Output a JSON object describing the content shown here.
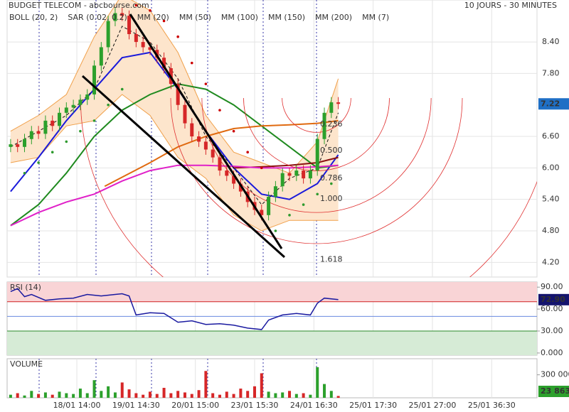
{
  "chart_data": {
    "type": "candlestick",
    "title": "BUDGET TELECOM - abcbourse.com",
    "subtitle": "10 JOURS - 30 MINUTES",
    "xlim": [
      0,
      152
    ],
    "xticks": [
      {
        "value": 20,
        "label": "18/01 14:00"
      },
      {
        "value": 37,
        "label": "19/01 14:30"
      },
      {
        "value": 54,
        "label": "20/01 15:00"
      },
      {
        "value": 71,
        "label": "23/01 15:30"
      },
      {
        "value": 88,
        "label": "24/01 16:30"
      },
      {
        "value": 105,
        "label": "25/01 17:30"
      },
      {
        "value": 122,
        "label": "25/01 27:00"
      },
      {
        "value": 139,
        "label": "25/01 36:30"
      }
    ],
    "ylim": [
      3.92,
      9.2
    ],
    "yticks": [
      {
        "value": 8.4,
        "label": "8.40"
      },
      {
        "value": 7.8,
        "label": "7.80"
      },
      {
        "value": 6.6,
        "label": "6.60"
      },
      {
        "value": 6,
        "label": "6.00"
      },
      {
        "value": 5.4,
        "label": "5.40"
      },
      {
        "value": 4.8,
        "label": "4.80"
      },
      {
        "value": 4.2,
        "label": "4.20"
      }
    ],
    "grid": true,
    "up_color": "#2ca02c",
    "down_color": "#d62728",
    "x": [
      1,
      3,
      5,
      7,
      9,
      11,
      13,
      15,
      17,
      19,
      21,
      23,
      25,
      27,
      29,
      31,
      33,
      35,
      37,
      39,
      41,
      43,
      45,
      47,
      49,
      51,
      53,
      55,
      57,
      59,
      61,
      63,
      65,
      67,
      69,
      71,
      73,
      75,
      77,
      79,
      81,
      83,
      85,
      87,
      89,
      91,
      93,
      95
    ],
    "open": [
      6.4,
      6.45,
      6.4,
      6.55,
      6.7,
      6.65,
      6.9,
      6.8,
      7.05,
      7.15,
      7.2,
      7.3,
      7.4,
      7.95,
      8.3,
      8.8,
      8.95,
      8.9,
      8.55,
      8.4,
      8.3,
      8.25,
      8.1,
      7.9,
      7.6,
      7.2,
      6.85,
      6.6,
      6.5,
      6.35,
      6.2,
      5.95,
      5.85,
      5.7,
      5.55,
      5.35,
      5.2,
      5.1,
      5.45,
      5.65,
      5.9,
      5.85,
      5.95,
      5.8,
      5.95,
      6.55,
      7.05,
      7.25
    ],
    "high": [
      6.55,
      6.55,
      6.65,
      6.8,
      6.8,
      7.0,
      7.0,
      7.15,
      7.25,
      7.3,
      7.4,
      7.5,
      8.05,
      8.4,
      8.9,
      9.05,
      9.05,
      9.0,
      8.65,
      8.5,
      8.4,
      8.35,
      8.2,
      8.0,
      7.7,
      7.3,
      6.95,
      6.7,
      6.6,
      6.45,
      6.3,
      6.05,
      5.95,
      5.8,
      5.65,
      5.45,
      5.3,
      5.55,
      5.75,
      6.0,
      6.0,
      6.05,
      6.05,
      6.05,
      6.65,
      7.15,
      7.35,
      7.35
    ],
    "low": [
      6.3,
      6.3,
      6.3,
      6.45,
      6.55,
      6.55,
      6.7,
      6.7,
      6.95,
      7.05,
      7.1,
      7.2,
      7.3,
      7.85,
      8.2,
      8.7,
      8.8,
      8.45,
      8.3,
      8.2,
      8.15,
      8.0,
      7.8,
      7.5,
      7.1,
      6.75,
      6.5,
      6.4,
      6.25,
      6.1,
      5.85,
      5.75,
      5.6,
      5.45,
      5.25,
      5.1,
      5.0,
      5.0,
      5.35,
      5.55,
      5.75,
      5.75,
      5.7,
      5.7,
      5.85,
      6.45,
      6.95,
      7.12
    ],
    "close": [
      6.45,
      6.4,
      6.55,
      6.7,
      6.65,
      6.9,
      6.8,
      7.05,
      7.15,
      7.2,
      7.3,
      7.4,
      7.95,
      8.3,
      8.8,
      8.95,
      8.9,
      8.55,
      8.4,
      8.3,
      8.25,
      8.1,
      7.9,
      7.6,
      7.2,
      6.85,
      6.6,
      6.5,
      6.35,
      6.2,
      5.95,
      5.85,
      5.7,
      5.55,
      5.35,
      5.2,
      5.1,
      5.45,
      5.65,
      5.9,
      5.85,
      5.95,
      5.8,
      5.95,
      6.55,
      7.05,
      7.25,
      7.22
    ],
    "last_price": 7.22,
    "last_price_color": "#1f6fc5",
    "overlays": [
      {
        "name": "BOLL (20, 2)",
        "kind": "band",
        "color": "#f0a04a",
        "fill": "#fde5cc",
        "x": [
          1,
          9,
          17,
          25,
          33,
          41,
          49,
          57,
          65,
          73,
          81,
          89,
          95
        ],
        "upper": [
          6.7,
          7.0,
          7.4,
          8.5,
          9.3,
          9.0,
          8.2,
          7.0,
          6.3,
          6.1,
          5.9,
          6.5,
          7.7
        ],
        "lower": [
          6.1,
          6.2,
          6.8,
          6.9,
          7.4,
          7.0,
          6.2,
          5.8,
          5.1,
          4.8,
          5.0,
          5.0,
          5.0
        ]
      },
      {
        "name": "SAR (0.02, 0.2)",
        "kind": "dots",
        "color": "#cc0000",
        "below_color": "#2e9a2e",
        "x": [
          5,
          9,
          13,
          17,
          21,
          25,
          29,
          33,
          37,
          41,
          45,
          49,
          53,
          57,
          61,
          65,
          69,
          73,
          77,
          81,
          85,
          89,
          93
        ],
        "values": [
          5.9,
          6.1,
          6.3,
          6.5,
          6.7,
          6.9,
          7.2,
          7.5,
          9.1,
          9.0,
          8.8,
          8.5,
          8.0,
          7.6,
          7.1,
          6.7,
          6.3,
          6.0,
          4.8,
          5.1,
          5.3,
          5.5,
          5.7
        ]
      },
      {
        "name": "MM (20)",
        "kind": "line",
        "color": "#1a1adb",
        "x": [
          1,
          9,
          17,
          25,
          33,
          41,
          49,
          57,
          65,
          73,
          81,
          89,
          95
        ],
        "values": [
          5.55,
          6.2,
          6.9,
          7.5,
          8.1,
          8.2,
          7.5,
          6.7,
          6.0,
          5.5,
          5.4,
          5.7,
          6.25
        ]
      },
      {
        "name": "MM (50)",
        "kind": "line",
        "color": "#1f8a1f",
        "x": [
          1,
          9,
          17,
          25,
          33,
          41,
          49,
          57,
          65,
          73,
          81,
          89,
          95
        ],
        "values": [
          4.9,
          5.3,
          5.9,
          6.6,
          7.1,
          7.4,
          7.6,
          7.5,
          7.2,
          6.8,
          6.4,
          6.0,
          6.05
        ]
      },
      {
        "name": "MM (100)",
        "kind": "line",
        "color": "#e06a10",
        "x": [
          28,
          41,
          49,
          57,
          65,
          73,
          81,
          89,
          95
        ],
        "values": [
          5.65,
          6.1,
          6.4,
          6.6,
          6.75,
          6.8,
          6.82,
          6.85,
          6.9
        ]
      },
      {
        "name": "MM (150)",
        "kind": "line",
        "color": "#8b1010",
        "x": [
          65,
          73,
          81,
          89,
          95
        ],
        "values": [
          6.0,
          6.02,
          6.05,
          6.1,
          6.2
        ]
      },
      {
        "name": "MM (200)",
        "kind": "line",
        "color": "#e020c8",
        "x": [
          1,
          9,
          17,
          25,
          33,
          41,
          49,
          57,
          65,
          73,
          81,
          89,
          95
        ],
        "values": [
          4.9,
          5.15,
          5.35,
          5.5,
          5.75,
          5.95,
          6.05,
          6.05,
          6.03,
          6.0,
          6.0,
          6.02,
          6.05
        ]
      },
      {
        "name": "MM (7)",
        "kind": "line",
        "dash": true,
        "color": "#111111",
        "x": [
          1,
          9,
          17,
          25,
          33,
          41,
          49,
          57,
          65,
          73,
          81,
          89,
          95
        ],
        "values": [
          6.4,
          6.7,
          7.0,
          7.5,
          8.7,
          8.4,
          7.7,
          6.6,
          6.0,
          5.3,
          5.8,
          6.0,
          7.05
        ]
      }
    ],
    "fibonacci": {
      "color": "#e03030",
      "levels": [
        0.236,
        {
          "value": 0.5,
          "label": "0.500"
        },
        0.786,
        {
          "value": 1,
          "label": "1.000"
        },
        1.618
      ],
      "prices": [
        6.83,
        6.33,
        5.8,
        5.41,
        4.25
      ]
    },
    "rsi": {
      "title": "RSI (14)",
      "color": "#1a1aa0",
      "x": [
        1,
        3,
        5,
        7,
        11,
        15,
        19,
        23,
        27,
        31,
        33,
        35,
        37,
        41,
        45,
        49,
        53,
        57,
        61,
        65,
        69,
        73,
        75,
        79,
        83,
        87,
        89,
        91,
        95
      ],
      "values": [
        84,
        88,
        77,
        80,
        72,
        74,
        75,
        80,
        78,
        80,
        81,
        78,
        52,
        55,
        54,
        42,
        44,
        39,
        40,
        38,
        34,
        32,
        45,
        52,
        54,
        52,
        68,
        75,
        72.9
      ],
      "ylim": [
        -3,
        97
      ],
      "yticks": [
        {
          "value": 90,
          "label": "90.00"
        },
        {
          "value": 60,
          "label": "60.00"
        },
        {
          "value": 30,
          "label": "30.00"
        },
        {
          "value": 0,
          "label": "0.000"
        }
      ],
      "overbought": 70,
      "oversold": 30,
      "midline": 50,
      "current": {
        "value": 72.9,
        "label": "72.90"
      }
    },
    "volume": {
      "title": "VOLUME",
      "values": [
        40000,
        60000,
        30000,
        90000,
        50000,
        70000,
        40000,
        80000,
        60000,
        50000,
        120000,
        60000,
        230000,
        90000,
        150000,
        70000,
        200000,
        110000,
        60000,
        40000,
        80000,
        50000,
        130000,
        60000,
        90000,
        70000,
        50000,
        100000,
        350000,
        60000,
        40000,
        80000,
        50000,
        120000,
        90000,
        150000,
        320000,
        80000,
        60000,
        70000,
        90000,
        50000,
        60000,
        40000,
        400000,
        180000,
        90000,
        23863
      ],
      "ylim": [
        0,
        510000
      ],
      "yticks": [
        {
          "value": 300000,
          "label": "300 000"
        }
      ],
      "current": {
        "value": 23863,
        "label": "23 863"
      }
    }
  }
}
